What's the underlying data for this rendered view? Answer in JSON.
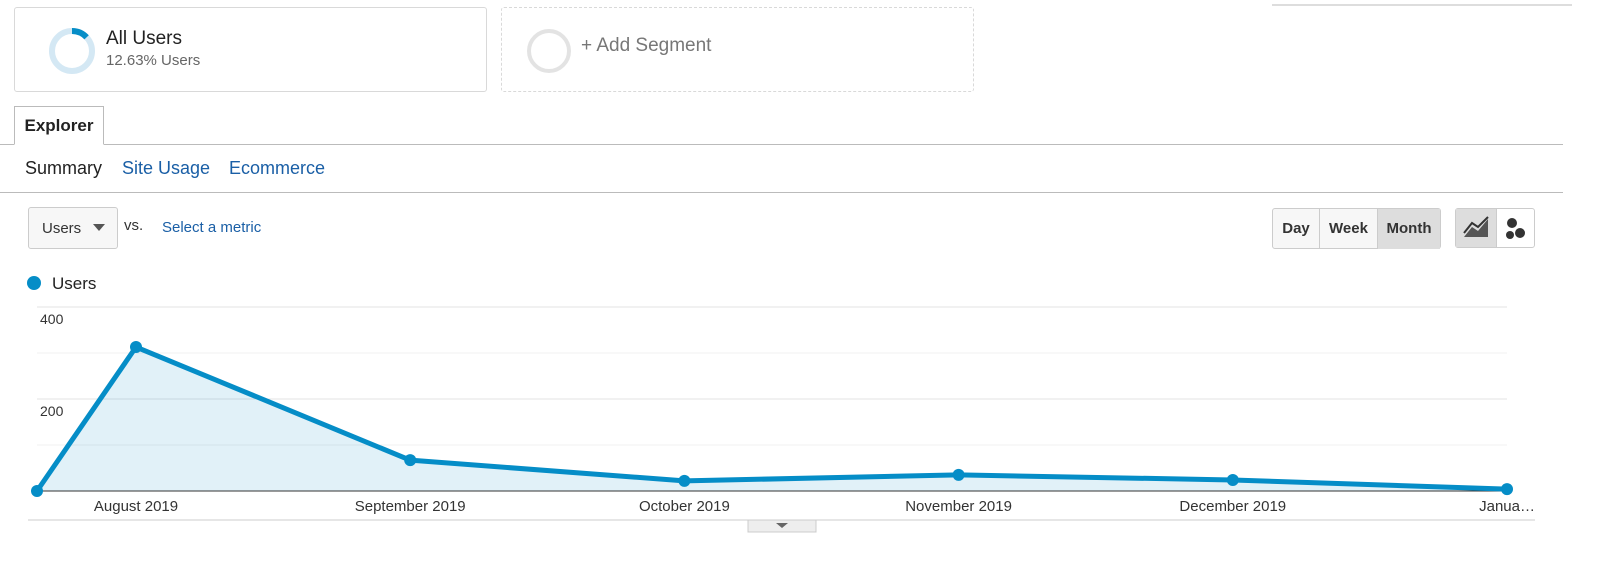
{
  "segments": {
    "active": {
      "title": "All Users",
      "subtitle": "12.63% Users"
    },
    "add": "+ Add Segment"
  },
  "tabs": [
    "Explorer"
  ],
  "subtabs": [
    "Summary",
    "Site Usage",
    "Ecommerce"
  ],
  "controls": {
    "metric": "Users",
    "vs": "vs.",
    "select_metric": "Select a metric",
    "periods": [
      "Day",
      "Week",
      "Month"
    ],
    "active_period": 2
  },
  "chart_data": {
    "type": "line",
    "categories": [
      null,
      "August 2019",
      "September 2019",
      "October 2019",
      "November 2019",
      "December 2019",
      "Janua…"
    ],
    "series": [
      {
        "name": "Users",
        "color": "#058dc7",
        "values": [
          0,
          313,
          67,
          22,
          35,
          24,
          4
        ]
      }
    ],
    "ylim": [
      0,
      400
    ],
    "yticks": [
      200,
      400
    ],
    "minor_grid": [
      100,
      300
    ],
    "grid": true,
    "fill": true
  }
}
